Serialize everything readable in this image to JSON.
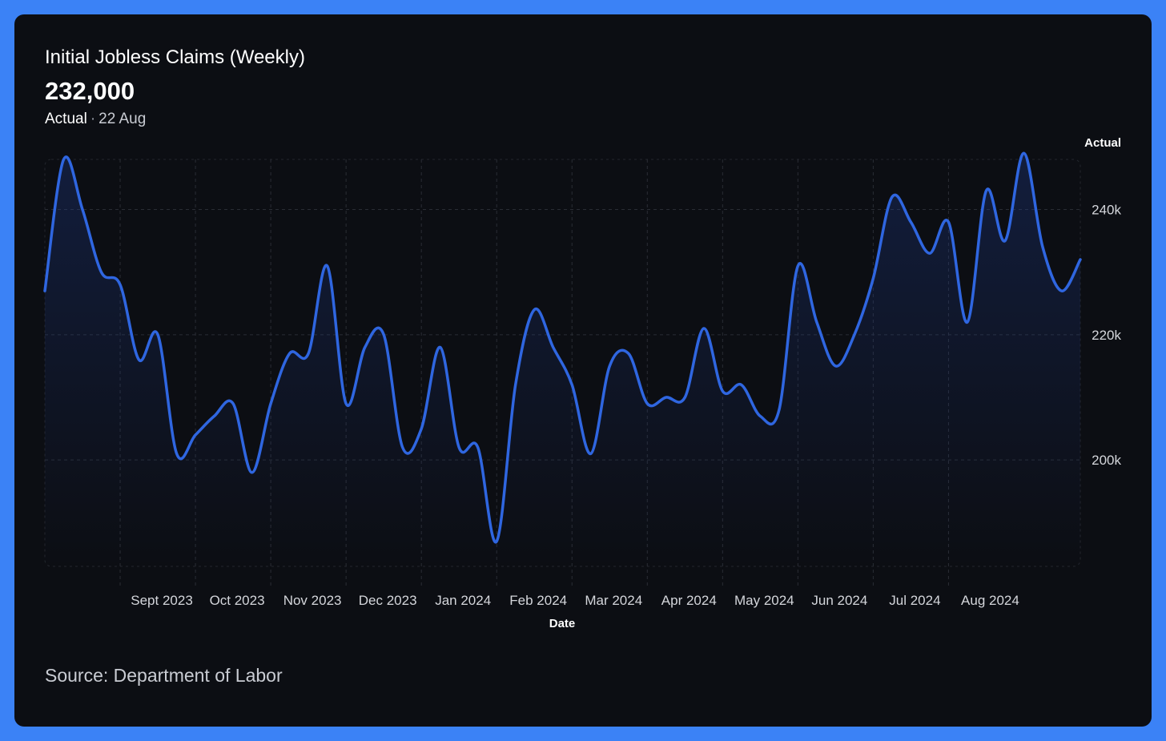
{
  "header": {
    "title": "Initial Jobless Claims (Weekly)",
    "value": "232,000",
    "status_label": "Actual",
    "separator": "·",
    "date_label": "22 Aug"
  },
  "footer": {
    "source": "Source: Department of Labor"
  },
  "colors": {
    "frame": "#3b82f6",
    "card": "#0c0e13",
    "line": "#2f66e0",
    "grid": "#2a2d35"
  },
  "chart_data": {
    "type": "line",
    "xlabel": "Date",
    "ylabel": "Actual",
    "ylim": [
      183000,
      248000
    ],
    "y_ticks": [
      {
        "value": 200000,
        "label": "200k"
      },
      {
        "value": 220000,
        "label": "220k"
      },
      {
        "value": 240000,
        "label": "240k"
      }
    ],
    "x_ticks": [
      {
        "week": 4,
        "label": "Sept 2023"
      },
      {
        "week": 8,
        "label": "Oct 2023"
      },
      {
        "week": 12,
        "label": "Nov 2023"
      },
      {
        "week": 16,
        "label": "Dec 2023"
      },
      {
        "week": 20,
        "label": "Jan 2024"
      },
      {
        "week": 24,
        "label": "Feb 2024"
      },
      {
        "week": 28,
        "label": "Mar 2024"
      },
      {
        "week": 32,
        "label": "Apr 2024"
      },
      {
        "week": 36,
        "label": "May 2024"
      },
      {
        "week": 40,
        "label": "Jun 2024"
      },
      {
        "week": 44,
        "label": "Jul 2024"
      },
      {
        "week": 48,
        "label": "Aug 2024"
      }
    ],
    "grid": true,
    "area_fill": true,
    "series": [
      {
        "name": "Actual",
        "values": [
          227000,
          248000,
          240000,
          230000,
          228000,
          216000,
          220000,
          201000,
          204000,
          207000,
          209000,
          198000,
          209000,
          217000,
          217000,
          231000,
          209000,
          218000,
          220000,
          202000,
          205000,
          218000,
          202000,
          202000,
          187000,
          212000,
          224000,
          218000,
          212000,
          201000,
          215000,
          217000,
          209000,
          210000,
          210000,
          221000,
          211000,
          212000,
          207000,
          208000,
          231000,
          222000,
          215000,
          220000,
          229000,
          242000,
          238000,
          233000,
          238000,
          222000,
          243000,
          235000,
          249000,
          234000,
          227000,
          232000
        ]
      }
    ]
  }
}
